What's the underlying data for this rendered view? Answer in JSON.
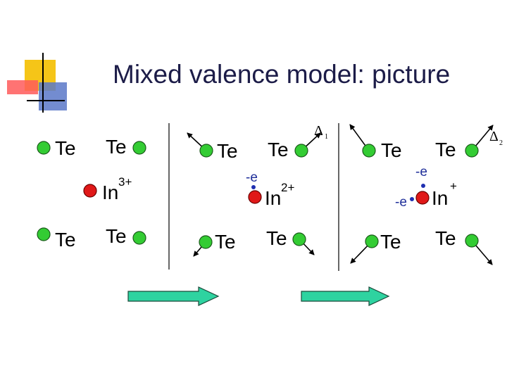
{
  "title": "Mixed valence model: picture",
  "panels": [
    {
      "atoms": [
        "Te",
        "Te",
        "Te",
        "Te"
      ],
      "ion": {
        "symbol": "In",
        "charge": "3+"
      }
    },
    {
      "atoms": [
        "Te",
        "Te",
        "Te",
        "Te"
      ],
      "ion": {
        "symbol": "In",
        "charge": "2+"
      },
      "electrons": [
        "-e"
      ],
      "delta": {
        "symbol": "Δ",
        "index": "1"
      }
    },
    {
      "atoms": [
        "Te",
        "Te",
        "Te",
        "Te"
      ],
      "ion": {
        "symbol": "In",
        "charge": "+"
      },
      "electrons": [
        "-e",
        "-e"
      ],
      "delta": {
        "symbol": "Δ",
        "index": "2"
      }
    }
  ]
}
